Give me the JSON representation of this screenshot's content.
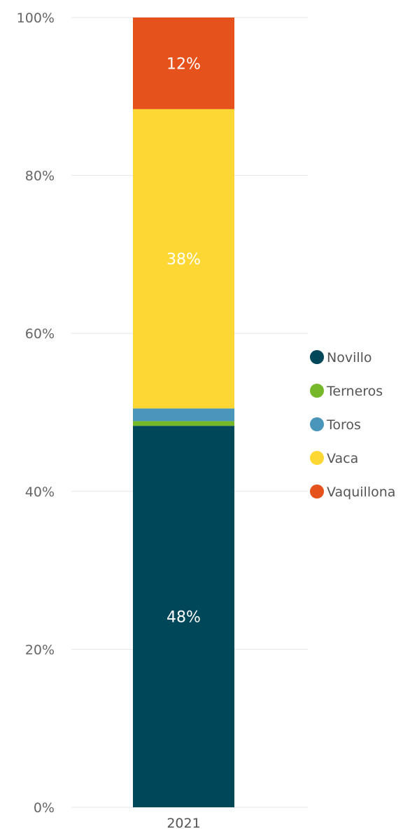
{
  "chart_data": {
    "type": "bar",
    "stacked": true,
    "categories": [
      "2021"
    ],
    "ylim": [
      0,
      100
    ],
    "yticks": [
      "0%",
      "20%",
      "40%",
      "60%",
      "80%",
      "100%"
    ],
    "grid": true,
    "legend_position": "right",
    "series": [
      {
        "name": "Novillo",
        "values": [
          48.3
        ],
        "color": "#00475A",
        "label": "48%"
      },
      {
        "name": "Terneros",
        "values": [
          0.6
        ],
        "color": "#76B82A",
        "label": ""
      },
      {
        "name": "Toros",
        "values": [
          1.6
        ],
        "color": "#4A96BB",
        "label": ""
      },
      {
        "name": "Vaca",
        "values": [
          37.9
        ],
        "color": "#FDD835",
        "label": "38%"
      },
      {
        "name": "Vaquillona",
        "values": [
          11.6
        ],
        "color": "#E5521B",
        "label": "12%"
      }
    ]
  }
}
